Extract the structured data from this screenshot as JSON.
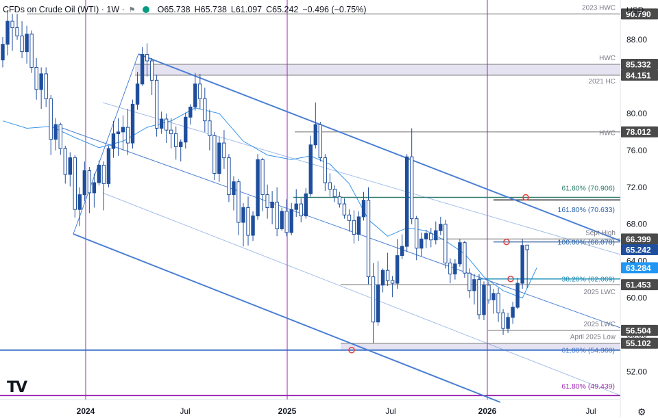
{
  "header": {
    "symbol": "CFDs on Crude Oil (WTI) · 1W ·",
    "flag_icon": "flag-icon",
    "status_color": "#089981",
    "open_label": "O",
    "open": "65.738",
    "high_label": "H",
    "high": "65.738",
    "low_label": "L",
    "low": "61.097",
    "close_label": "C",
    "close": "65.242",
    "change": "−0.496 (−0.75%)"
  },
  "currency": "USD",
  "logo_text": "TV",
  "settings_icon": "gear-icon",
  "chart_data": {
    "type": "candlestick",
    "timeframe": "1W",
    "ylim": [
      49.0,
      92.3
    ],
    "y_ticks": [
      52.0,
      56.0,
      60.0,
      64.0,
      68.0,
      72.0,
      76.0,
      80.0,
      88.0
    ],
    "x_ticks": [
      "2024",
      "Jul",
      "2025",
      "Jul",
      "2026",
      "Jul"
    ],
    "candles": [
      [
        85.8,
        88.3,
        85.0,
        87.5
      ],
      [
        87.5,
        91.2,
        86.3,
        90.0
      ],
      [
        90.0,
        90.8,
        86.8,
        89.3
      ],
      [
        89.3,
        90.8,
        88.0,
        88.4
      ],
      [
        88.4,
        90.0,
        86.0,
        86.7
      ],
      [
        86.7,
        89.5,
        85.4,
        88.6
      ],
      [
        88.6,
        89.0,
        84.4,
        85.0
      ],
      [
        85.0,
        86.0,
        81.5,
        82.6
      ],
      [
        82.6,
        85.0,
        80.5,
        84.3
      ],
      [
        84.3,
        85.0,
        80.7,
        81.6
      ],
      [
        81.6,
        82.0,
        75.5,
        77.2
      ],
      [
        77.2,
        79.5,
        76.0,
        78.8
      ],
      [
        78.8,
        79.0,
        75.5,
        76.2
      ],
      [
        76.2,
        76.5,
        72.4,
        73.4
      ],
      [
        73.4,
        75.8,
        72.1,
        75.2
      ],
      [
        75.2,
        75.5,
        68.7,
        69.6
      ],
      [
        69.6,
        72.0,
        67.8,
        71.2
      ],
      [
        71.2,
        74.8,
        70.5,
        73.8
      ],
      [
        73.8,
        74.2,
        69.2,
        71.4
      ],
      [
        71.4,
        73.5,
        69.8,
        72.5
      ],
      [
        72.5,
        74.9,
        72.2,
        74.4
      ],
      [
        74.4,
        74.8,
        69.5,
        72.4
      ],
      [
        72.4,
        76.5,
        72.0,
        76.2
      ],
      [
        76.2,
        79.2,
        75.2,
        77.8
      ],
      [
        77.8,
        79.5,
        75.4,
        78.0
      ],
      [
        78.0,
        79.8,
        76.0,
        78.5
      ],
      [
        78.5,
        80.5,
        75.5,
        76.8
      ],
      [
        76.8,
        81.5,
        76.2,
        81.0
      ],
      [
        81.0,
        84.5,
        80.4,
        83.2
      ],
      [
        83.2,
        87.2,
        83.0,
        86.4
      ],
      [
        86.4,
        87.6,
        84.0,
        85.7
      ],
      [
        85.7,
        86.0,
        82.0,
        83.6
      ],
      [
        83.6,
        84.2,
        77.5,
        78.4
      ],
      [
        78.4,
        80.2,
        77.8,
        79.4
      ],
      [
        79.4,
        80.0,
        76.8,
        78.2
      ],
      [
        78.2,
        79.5,
        76.2,
        77.8
      ],
      [
        77.8,
        78.6,
        75.0,
        76.4
      ],
      [
        76.4,
        77.2,
        74.8,
        76.9
      ],
      [
        76.9,
        80.1,
        76.2,
        79.6
      ],
      [
        79.6,
        81.0,
        78.8,
        80.7
      ],
      [
        80.7,
        84.4,
        80.3,
        83.2
      ],
      [
        83.2,
        84.3,
        80.5,
        81.6
      ],
      [
        81.6,
        82.8,
        78.0,
        79.2
      ],
      [
        79.2,
        80.4,
        76.0,
        77.6
      ],
      [
        77.6,
        78.0,
        72.8,
        73.5
      ],
      [
        73.5,
        77.5,
        72.6,
        76.8
      ],
      [
        76.8,
        78.2,
        74.0,
        75.2
      ],
      [
        75.2,
        75.6,
        70.4,
        71.2
      ],
      [
        71.2,
        73.2,
        69.5,
        72.6
      ],
      [
        72.6,
        72.9,
        66.8,
        68.2
      ],
      [
        68.2,
        70.3,
        65.6,
        69.8
      ],
      [
        69.8,
        71.0,
        65.7,
        66.8
      ],
      [
        66.8,
        69.4,
        66.2,
        68.9
      ],
      [
        68.9,
        75.6,
        68.5,
        75.0
      ],
      [
        75.0,
        75.2,
        69.4,
        71.2
      ],
      [
        71.2,
        72.3,
        68.6,
        69.8
      ],
      [
        69.8,
        71.6,
        68.0,
        70.4
      ],
      [
        70.4,
        72.0,
        66.7,
        67.5
      ],
      [
        67.5,
        69.8,
        67.3,
        69.4
      ],
      [
        69.4,
        70.7,
        66.7,
        67.1
      ],
      [
        67.1,
        70.3,
        66.8,
        69.6
      ],
      [
        69.6,
        71.8,
        68.8,
        70.2
      ],
      [
        70.2,
        70.8,
        68.2,
        68.9
      ],
      [
        68.9,
        71.9,
        68.6,
        71.3
      ],
      [
        71.3,
        77.6,
        71.0,
        76.6
      ],
      [
        76.6,
        81.2,
        76.2,
        78.8
      ],
      [
        78.8,
        79.1,
        74.8,
        75.2
      ],
      [
        75.2,
        75.6,
        71.6,
        72.5
      ],
      [
        72.5,
        73.5,
        71.0,
        71.8
      ],
      [
        71.8,
        72.2,
        70.4,
        71.0
      ],
      [
        71.0,
        71.5,
        69.8,
        70.2
      ],
      [
        70.2,
        70.8,
        68.6,
        69.0
      ],
      [
        69.0,
        69.6,
        67.2,
        68.4
      ],
      [
        68.4,
        69.5,
        65.9,
        66.9
      ],
      [
        66.9,
        69.4,
        66.2,
        68.8
      ],
      [
        68.8,
        71.5,
        68.4,
        70.6
      ],
      [
        70.6,
        72.0,
        61.5,
        62.3
      ],
      [
        62.3,
        63.8,
        55.1,
        57.4
      ],
      [
        57.4,
        64.0,
        57.0,
        61.4
      ],
      [
        61.4,
        63.2,
        60.6,
        63.0
      ],
      [
        63.0,
        64.9,
        61.3,
        61.9
      ],
      [
        61.9,
        62.4,
        60.1,
        61.6
      ],
      [
        61.6,
        66.4,
        61.0,
        64.6
      ],
      [
        64.6,
        66.9,
        64.2,
        65.6
      ],
      [
        65.6,
        75.6,
        65.0,
        75.3
      ],
      [
        75.3,
        78.4,
        68.0,
        68.6
      ],
      [
        68.6,
        68.9,
        64.1,
        65.4
      ],
      [
        65.4,
        67.1,
        64.5,
        66.4
      ],
      [
        66.4,
        67.4,
        65.4,
        67.0
      ],
      [
        67.0,
        67.6,
        65.5,
        66.3
      ],
      [
        66.3,
        68.3,
        65.8,
        67.3
      ],
      [
        67.3,
        68.8,
        66.8,
        68.0
      ],
      [
        68.0,
        68.5,
        63.2,
        63.8
      ],
      [
        63.8,
        64.3,
        61.6,
        62.6
      ],
      [
        62.6,
        64.2,
        62.0,
        63.7
      ],
      [
        63.7,
        66.4,
        63.4,
        66.0
      ],
      [
        66.0,
        66.2,
        62.2,
        62.7
      ],
      [
        62.7,
        63.2,
        60.0,
        60.8
      ],
      [
        60.8,
        62.6,
        59.3,
        62.0
      ],
      [
        62.0,
        62.6,
        57.7,
        58.2
      ],
      [
        58.2,
        61.8,
        57.6,
        61.4
      ],
      [
        61.4,
        61.8,
        59.4,
        59.8
      ],
      [
        59.8,
        61.0,
        58.3,
        60.5
      ],
      [
        60.5,
        61.1,
        57.4,
        58.4
      ],
      [
        58.4,
        58.8,
        56.0,
        56.7
      ],
      [
        56.7,
        58.4,
        56.2,
        57.9
      ],
      [
        57.9,
        59.6,
        57.2,
        59.0
      ],
      [
        59.0,
        62.2,
        58.8,
        61.6
      ],
      [
        61.6,
        66.4,
        61.0,
        65.7
      ],
      [
        65.738,
        65.738,
        61.097,
        65.242
      ]
    ],
    "price_labels": [
      {
        "name": "2023 HWC",
        "value": "90.790",
        "price": 90.79,
        "kind": "gray"
      },
      {
        "name": "HWC",
        "value": "85.332",
        "price": 85.33,
        "kind": "gray"
      },
      {
        "name": "2021 HC",
        "value": "84.151",
        "price": 84.15,
        "kind": "gray"
      },
      {
        "name": "HWC",
        "value": "78.012",
        "price": 78.01,
        "kind": "gray"
      },
      {
        "name": "Sept High",
        "value": "66.399",
        "price": 66.4,
        "kind": "gray"
      },
      {
        "name": "",
        "value": "65.242",
        "price": 65.24,
        "kind": "current"
      },
      {
        "name": "",
        "value": "63.284",
        "price": 63.28,
        "kind": "ma"
      },
      {
        "name": "2025 LWC",
        "value": "61.453",
        "price": 61.45,
        "kind": "gray"
      },
      {
        "name": "2025 LWC",
        "value": "56.504",
        "price": 56.5,
        "kind": "gray"
      },
      {
        "name": "April 2025 Low",
        "value": "55.102",
        "price": 55.1,
        "kind": "gray"
      }
    ],
    "fib_labels": [
      {
        "text": "61.80% (70.906)",
        "price": 70.906
      },
      {
        "text": "161.80% (70.633)",
        "price": 70.633
      },
      {
        "text": "100.00% (66.078)",
        "price": 66.078
      },
      {
        "text": "38.20% (62.069)",
        "price": 62.069
      },
      {
        "text": "61.80% (54.360)",
        "price": 54.36
      },
      {
        "text": "61.80% (49.439)",
        "price": 49.439
      }
    ],
    "moving_average": [
      [
        0,
        79.2
      ],
      [
        5,
        78.4
      ],
      [
        10,
        78.6
      ],
      [
        15,
        77.4
      ],
      [
        20,
        76.3
      ],
      [
        25,
        77.0
      ],
      [
        30,
        78.5
      ],
      [
        35,
        79.2
      ],
      [
        40,
        80.6
      ],
      [
        45,
        80.0
      ],
      [
        50,
        77.0
      ],
      [
        55,
        75.5
      ],
      [
        60,
        75.0
      ],
      [
        64,
        75.4
      ],
      [
        68,
        74.5
      ],
      [
        72,
        72.4
      ],
      [
        76,
        68.5
      ],
      [
        80,
        66.7
      ],
      [
        84,
        67.6
      ],
      [
        88,
        67.3
      ],
      [
        92,
        66.2
      ],
      [
        96,
        64.8
      ],
      [
        100,
        62.3
      ],
      [
        104,
        60.8
      ],
      [
        108,
        60.0
      ],
      [
        111,
        63.28
      ]
    ],
    "colors": {
      "candle": "#1f4e9c",
      "channel": "#4a7fd4",
      "ma": "#1e88e5",
      "vline": "#9c27b0",
      "fib": "#4a6fa5",
      "zone": "#dcd8ec",
      "current_badge": "#1f4e9c",
      "ma_badge": "#2196f3",
      "level_badge": "#4a4a4a",
      "green": "#2e7d6b"
    }
  }
}
